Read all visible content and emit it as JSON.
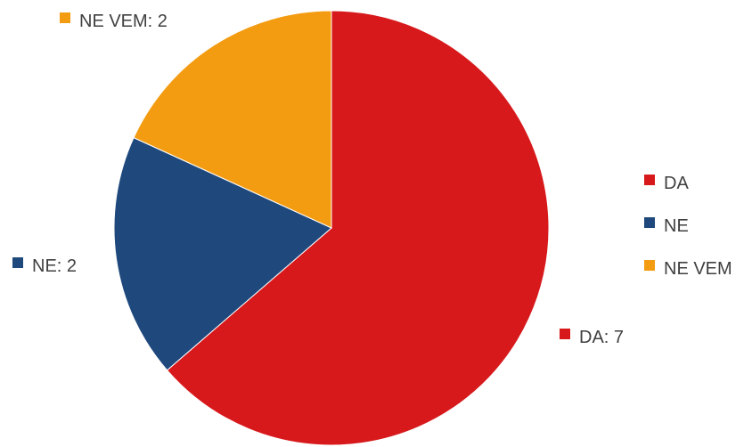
{
  "chart_data": {
    "type": "pie",
    "categories": [
      "DA",
      "NE",
      "NE VEM"
    ],
    "values": [
      7,
      2,
      2
    ],
    "colors": [
      "#d7191c",
      "#1f497d",
      "#f39c12"
    ],
    "legend_position": "right",
    "data_labels": [
      "DA: 7",
      "NE: 2",
      "NE VEM: 2"
    ],
    "start_angle_deg": 0,
    "direction": "clockwise"
  }
}
